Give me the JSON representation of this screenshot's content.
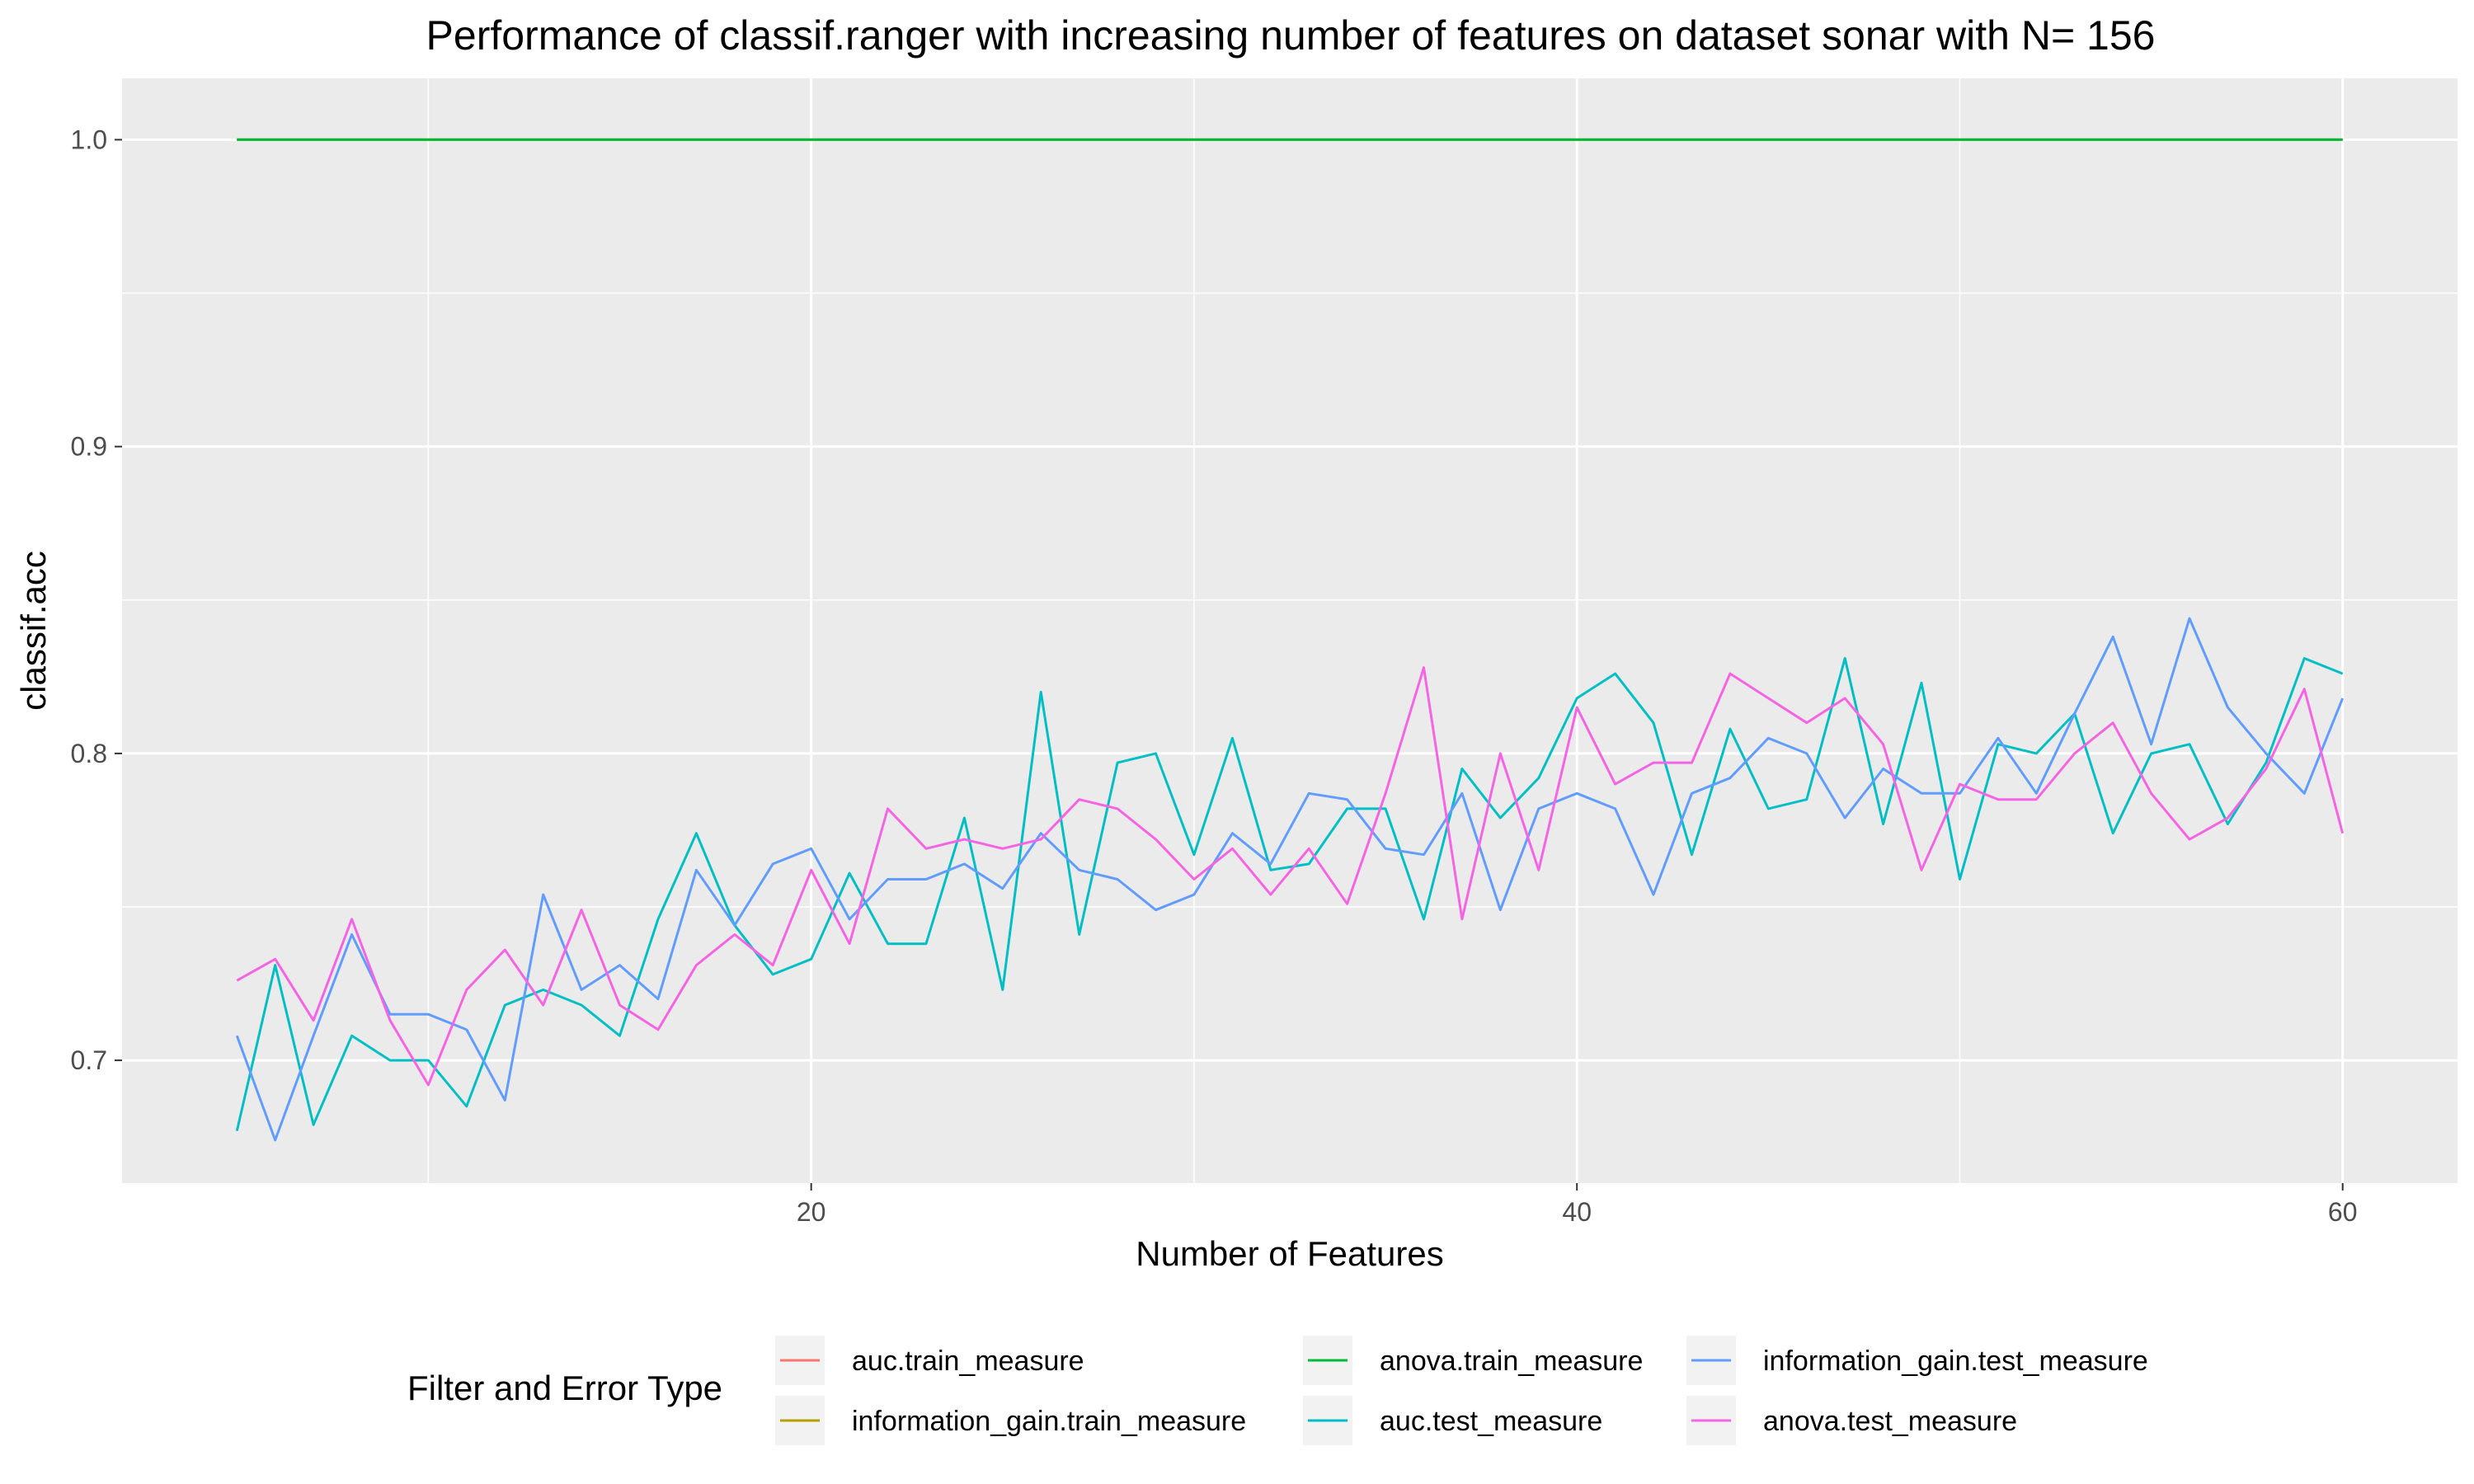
{
  "chart_data": {
    "type": "line",
    "title": "Performance of classif.ranger with increasing number of features on dataset sonar with N= 156",
    "xlabel": "Number of Features",
    "ylabel": "classif.acc",
    "xlim": [
      2,
      63
    ],
    "ylim": [
      0.66,
      1.02
    ],
    "x_ticks": [
      20,
      40,
      60
    ],
    "x_tick_labels": [
      "20",
      "40",
      "60"
    ],
    "y_ticks": [
      0.7,
      0.8,
      0.9,
      1.0
    ],
    "y_tick_labels": [
      "0.7",
      "0.8",
      "0.9",
      "1.0"
    ],
    "grid": true,
    "legend": {
      "title": "Filter and Error Type",
      "position": "bottom"
    },
    "x": [
      5,
      6,
      7,
      8,
      9,
      10,
      11,
      12,
      13,
      14,
      15,
      16,
      17,
      18,
      19,
      20,
      21,
      22,
      23,
      24,
      25,
      26,
      27,
      28,
      29,
      30,
      31,
      32,
      33,
      34,
      35,
      36,
      37,
      38,
      39,
      40,
      41,
      42,
      43,
      44,
      45,
      46,
      47,
      48,
      49,
      50,
      51,
      52,
      53,
      54,
      55,
      56,
      57,
      58,
      59,
      60
    ],
    "series": [
      {
        "name": "auc.train_measure",
        "color": "#F8766D",
        "values": [
          1,
          1,
          1,
          1,
          1,
          1,
          1,
          1,
          1,
          1,
          1,
          1,
          1,
          1,
          1,
          1,
          1,
          1,
          1,
          1,
          1,
          1,
          1,
          1,
          1,
          1,
          1,
          1,
          1,
          1,
          1,
          1,
          1,
          1,
          1,
          1,
          1,
          1,
          1,
          1,
          1,
          1,
          1,
          1,
          1,
          1,
          1,
          1,
          1,
          1,
          1,
          1,
          1,
          1,
          1,
          1
        ]
      },
      {
        "name": "information_gain.train_measure",
        "color": "#B79F00",
        "values": [
          1,
          1,
          1,
          1,
          1,
          1,
          1,
          1,
          1,
          1,
          1,
          1,
          1,
          1,
          1,
          1,
          1,
          1,
          1,
          1,
          1,
          1,
          1,
          1,
          1,
          1,
          1,
          1,
          1,
          1,
          1,
          1,
          1,
          1,
          1,
          1,
          1,
          1,
          1,
          1,
          1,
          1,
          1,
          1,
          1,
          1,
          1,
          1,
          1,
          1,
          1,
          1,
          1,
          1,
          1,
          1
        ]
      },
      {
        "name": "anova.train_measure",
        "color": "#00BA38",
        "values": [
          1,
          1,
          1,
          1,
          1,
          1,
          1,
          1,
          1,
          1,
          1,
          1,
          1,
          1,
          1,
          1,
          1,
          1,
          1,
          1,
          1,
          1,
          1,
          1,
          1,
          1,
          1,
          1,
          1,
          1,
          1,
          1,
          1,
          1,
          1,
          1,
          1,
          1,
          1,
          1,
          1,
          1,
          1,
          1,
          1,
          1,
          1,
          1,
          1,
          1,
          1,
          1,
          1,
          1,
          1,
          1
        ]
      },
      {
        "name": "auc.test_measure",
        "color": "#00BFC4",
        "values": [
          0.677,
          0.731,
          0.679,
          0.708,
          0.7,
          0.7,
          0.685,
          0.718,
          0.723,
          0.718,
          0.708,
          0.746,
          0.774,
          0.744,
          0.728,
          0.733,
          0.761,
          0.738,
          0.738,
          0.779,
          0.723,
          0.82,
          0.741,
          0.797,
          0.8,
          0.767,
          0.805,
          0.762,
          0.764,
          0.782,
          0.782,
          0.746,
          0.795,
          0.779,
          0.792,
          0.818,
          0.826,
          0.81,
          0.767,
          0.808,
          0.782,
          0.785,
          0.831,
          0.777,
          0.823,
          0.759,
          0.803,
          0.8,
          0.813,
          0.774,
          0.8,
          0.803,
          0.777,
          0.797,
          0.831,
          0.826
        ]
      },
      {
        "name": "information_gain.test_measure",
        "color": "#619CFF",
        "values": [
          0.708,
          0.674,
          0.708,
          0.741,
          0.715,
          0.715,
          0.71,
          0.687,
          0.754,
          0.723,
          0.731,
          0.72,
          0.762,
          0.744,
          0.764,
          0.769,
          0.746,
          0.759,
          0.759,
          0.764,
          0.756,
          0.774,
          0.762,
          0.759,
          0.749,
          0.754,
          0.774,
          0.764,
          0.787,
          0.785,
          0.769,
          0.767,
          0.787,
          0.749,
          0.782,
          0.787,
          0.782,
          0.754,
          0.787,
          0.792,
          0.805,
          0.8,
          0.779,
          0.795,
          0.787,
          0.787,
          0.805,
          0.787,
          0.813,
          0.838,
          0.803,
          0.844,
          0.815,
          0.8,
          0.787,
          0.818
        ]
      },
      {
        "name": "anova.test_measure",
        "color": "#F564E3",
        "values": [
          0.726,
          0.733,
          0.713,
          0.746,
          0.713,
          0.692,
          0.723,
          0.736,
          0.718,
          0.749,
          0.718,
          0.71,
          0.731,
          0.741,
          0.731,
          0.762,
          0.738,
          0.782,
          0.769,
          0.772,
          0.769,
          0.772,
          0.785,
          0.782,
          0.772,
          0.759,
          0.769,
          0.754,
          0.769,
          0.751,
          0.787,
          0.828,
          0.746,
          0.8,
          0.762,
          0.815,
          0.79,
          0.797,
          0.797,
          0.826,
          0.818,
          0.81,
          0.818,
          0.803,
          0.762,
          0.79,
          0.785,
          0.785,
          0.8,
          0.81,
          0.787,
          0.772,
          0.779,
          0.795,
          0.821,
          0.774
        ]
      }
    ]
  }
}
